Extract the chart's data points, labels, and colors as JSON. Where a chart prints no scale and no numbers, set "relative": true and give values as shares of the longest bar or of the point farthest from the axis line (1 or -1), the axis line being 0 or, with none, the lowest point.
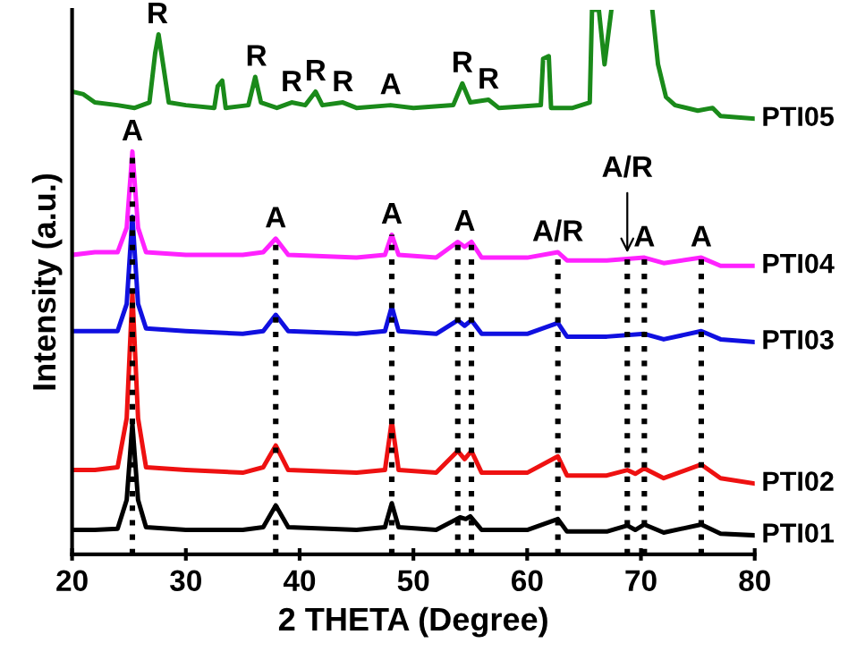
{
  "chart_data": {
    "type": "line",
    "relative": true,
    "xlabel": "2 THETA (Degree)",
    "ylabel": "Intensity (a.u.)",
    "xlim": [
      20,
      80
    ],
    "xticks": [
      20,
      30,
      40,
      50,
      60,
      70,
      80
    ],
    "grid": false,
    "legend": false,
    "marker": "none",
    "line_style": "solid",
    "series": [
      {
        "name": "PTI05",
        "color": "#1a8a1a",
        "x": [
          20,
          21,
          22,
          24,
          25.5,
          26.8,
          27.3,
          27.6,
          28,
          28.5,
          30,
          32.5,
          32.8,
          33.2,
          33.5,
          35.5,
          36.1,
          36.6,
          38,
          39.3,
          40.5,
          41.4,
          42,
          43.8,
          45,
          48,
          50,
          53.5,
          54.3,
          55,
          56.6,
          57.5,
          61.2,
          61.4,
          61.9,
          62.1,
          64,
          65.5,
          65.7,
          66.3,
          66.8,
          67.4,
          69,
          71.0,
          71.5,
          72.2,
          73,
          75,
          76.3,
          77,
          80
        ],
        "values": [
          0.85,
          0.845,
          0.83,
          0.825,
          0.82,
          0.83,
          0.92,
          0.955,
          0.9,
          0.83,
          0.825,
          0.82,
          0.86,
          0.87,
          0.82,
          0.825,
          0.877,
          0.83,
          0.82,
          0.83,
          0.825,
          0.85,
          0.825,
          0.83,
          0.82,
          0.825,
          0.82,
          0.825,
          0.865,
          0.83,
          0.835,
          0.82,
          0.825,
          0.91,
          0.915,
          0.82,
          0.82,
          0.83,
          1.0,
          1.0,
          0.9,
          1.0,
          null,
          1.0,
          0.9,
          0.84,
          0.825,
          0.815,
          0.82,
          0.805,
          0.8
        ]
      },
      {
        "name": "PTI04",
        "color": "#ff22ff",
        "x": [
          20,
          22,
          24,
          24.8,
          25.3,
          25.8,
          26.5,
          30,
          35,
          36.8,
          37.9,
          39,
          45,
          47.5,
          48.1,
          48.7,
          52,
          53.9,
          54.5,
          55.1,
          56,
          60,
          62.7,
          63.5,
          67,
          70.3,
          72,
          75.3,
          77,
          80
        ],
        "values": [
          0.55,
          0.555,
          0.555,
          0.6,
          0.74,
          0.6,
          0.555,
          0.55,
          0.55,
          0.555,
          0.58,
          0.55,
          0.545,
          0.55,
          0.587,
          0.55,
          0.545,
          0.574,
          0.565,
          0.574,
          0.545,
          0.545,
          0.555,
          0.54,
          0.54,
          0.545,
          0.535,
          0.545,
          0.53,
          0.53
        ]
      },
      {
        "name": "PTI03",
        "color": "#1010e0",
        "x": [
          20,
          22,
          24,
          24.8,
          25.3,
          25.8,
          26.5,
          30,
          35,
          36.8,
          37.9,
          39,
          45,
          47.5,
          48.1,
          48.7,
          52,
          53.9,
          54.5,
          55.1,
          56,
          60,
          62.7,
          63.5,
          67,
          70.3,
          72,
          75.3,
          77,
          80
        ],
        "values": [
          0.41,
          0.41,
          0.41,
          0.46,
          0.62,
          0.46,
          0.415,
          0.41,
          0.405,
          0.41,
          0.44,
          0.41,
          0.405,
          0.41,
          0.455,
          0.41,
          0.405,
          0.43,
          0.42,
          0.43,
          0.405,
          0.405,
          0.425,
          0.4,
          0.4,
          0.405,
          0.395,
          0.41,
          0.395,
          0.39
        ]
      },
      {
        "name": "PTI02",
        "color": "#ee1111",
        "x": [
          20,
          22,
          24,
          24.8,
          25.3,
          25.8,
          26.5,
          30,
          35,
          36.8,
          37.9,
          39,
          45,
          47.5,
          48.1,
          48.7,
          52,
          53.9,
          54.5,
          55.1,
          56,
          60,
          62.7,
          63.5,
          67,
          68.8,
          69.5,
          70.3,
          72,
          75.3,
          77,
          80
        ],
        "values": [
          0.155,
          0.155,
          0.16,
          0.25,
          0.48,
          0.25,
          0.16,
          0.155,
          0.15,
          0.16,
          0.2,
          0.155,
          0.15,
          0.155,
          0.245,
          0.155,
          0.15,
          0.19,
          0.175,
          0.19,
          0.15,
          0.15,
          0.18,
          0.145,
          0.145,
          0.155,
          0.148,
          0.158,
          0.14,
          0.165,
          0.14,
          0.13
        ]
      },
      {
        "name": "PTI01",
        "color": "#000000",
        "x": [
          20,
          22,
          24,
          24.8,
          25.3,
          25.8,
          26.5,
          30,
          35,
          36.8,
          37.9,
          39,
          45,
          47.5,
          48.1,
          48.7,
          52,
          54.1,
          54.6,
          55.0,
          56,
          60,
          62.7,
          63.5,
          67,
          68.8,
          69.5,
          70.3,
          72,
          75.3,
          77,
          80
        ],
        "values": [
          0.045,
          0.045,
          0.047,
          0.1,
          0.24,
          0.1,
          0.05,
          0.045,
          0.045,
          0.05,
          0.09,
          0.05,
          0.045,
          0.05,
          0.094,
          0.05,
          0.045,
          0.068,
          0.065,
          0.07,
          0.045,
          0.045,
          0.065,
          0.042,
          0.042,
          0.053,
          0.045,
          0.055,
          0.04,
          0.055,
          0.038,
          0.035
        ]
      }
    ],
    "ref_lines": [
      {
        "axis": "x",
        "value": 25.3,
        "line_style": "dotted",
        "color": "#000000"
      },
      {
        "axis": "x",
        "value": 37.9,
        "line_style": "dotted",
        "color": "#000000"
      },
      {
        "axis": "x",
        "value": 48.1,
        "line_style": "dotted",
        "color": "#000000"
      },
      {
        "axis": "x",
        "value": 53.9,
        "line_style": "dotted",
        "color": "#000000"
      },
      {
        "axis": "x",
        "value": 55.1,
        "line_style": "dotted",
        "color": "#000000"
      },
      {
        "axis": "x",
        "value": 62.7,
        "line_style": "dotted",
        "color": "#000000"
      },
      {
        "axis": "x",
        "value": 68.8,
        "line_style": "dotted",
        "color": "#000000"
      },
      {
        "axis": "x",
        "value": 70.3,
        "line_style": "dotted",
        "color": "#000000"
      },
      {
        "axis": "x",
        "value": 75.3,
        "line_style": "dotted",
        "color": "#000000"
      }
    ],
    "annotations": [
      {
        "text": "R",
        "x": 27.5,
        "y": 0.955
      },
      {
        "text": "R",
        "x": 36.2,
        "y": 0.877
      },
      {
        "text": "R",
        "x": 39.3,
        "y": 0.83
      },
      {
        "text": "R",
        "x": 41.4,
        "y": 0.85
      },
      {
        "text": "R",
        "x": 43.8,
        "y": 0.83
      },
      {
        "text": "A",
        "x": 48.0,
        "y": 0.825
      },
      {
        "text": "R",
        "x": 54.3,
        "y": 0.865
      },
      {
        "text": "R",
        "x": 56.6,
        "y": 0.835
      },
      {
        "text": "A",
        "x": 25.3,
        "y": 0.74
      },
      {
        "text": "A",
        "x": 37.9,
        "y": 0.58
      },
      {
        "text": "A",
        "x": 48.1,
        "y": 0.587
      },
      {
        "text": "A",
        "x": 54.5,
        "y": 0.574
      },
      {
        "text": "A/R",
        "x": 62.7,
        "y": 0.555
      },
      {
        "text": "A/R",
        "x": 68.8,
        "y": 0.545
      },
      {
        "text": "A",
        "x": 70.3,
        "y": 0.545
      },
      {
        "text": "A",
        "x": 75.3,
        "y": 0.545
      }
    ]
  }
}
